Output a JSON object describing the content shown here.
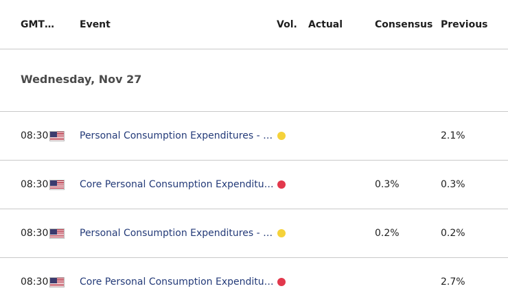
{
  "header": {
    "time_label": "GMT…",
    "event_label": "Event",
    "vol_label": "Vol.",
    "actual_label": "Actual",
    "consensus_label": "Consensus",
    "previous_label": "Previous"
  },
  "date_group": {
    "label": "Wednesday, Nov 27"
  },
  "colors": {
    "volatility_medium": "#f5d23a",
    "volatility_high": "#e2384c",
    "event_text": "#233a78",
    "divider": "#c9c9c9"
  },
  "events": [
    {
      "time": "08:30",
      "country_flag": "us-flag-icon",
      "title": "Personal Consumption Expenditures - Price Index (YoY) (Oct)",
      "volatility": "medium",
      "actual": "",
      "consensus": "",
      "previous": "2.1%"
    },
    {
      "time": "08:30",
      "country_flag": "us-flag-icon",
      "title": "Core Personal Consumption Expenditures - Price Index (MoM) (Oct)",
      "volatility": "high",
      "actual": "",
      "consensus": "0.3%",
      "previous": "0.3%"
    },
    {
      "time": "08:30",
      "country_flag": "us-flag-icon",
      "title": "Personal Consumption Expenditures - Price Index (MoM) (Oct)",
      "volatility": "medium",
      "actual": "",
      "consensus": "0.2%",
      "previous": "0.2%"
    },
    {
      "time": "08:30",
      "country_flag": "us-flag-icon",
      "title": "Core Personal Consumption Expenditures - Price Index (YoY) (Oct)",
      "volatility": "high",
      "actual": "",
      "consensus": "",
      "previous": "2.7%"
    }
  ]
}
